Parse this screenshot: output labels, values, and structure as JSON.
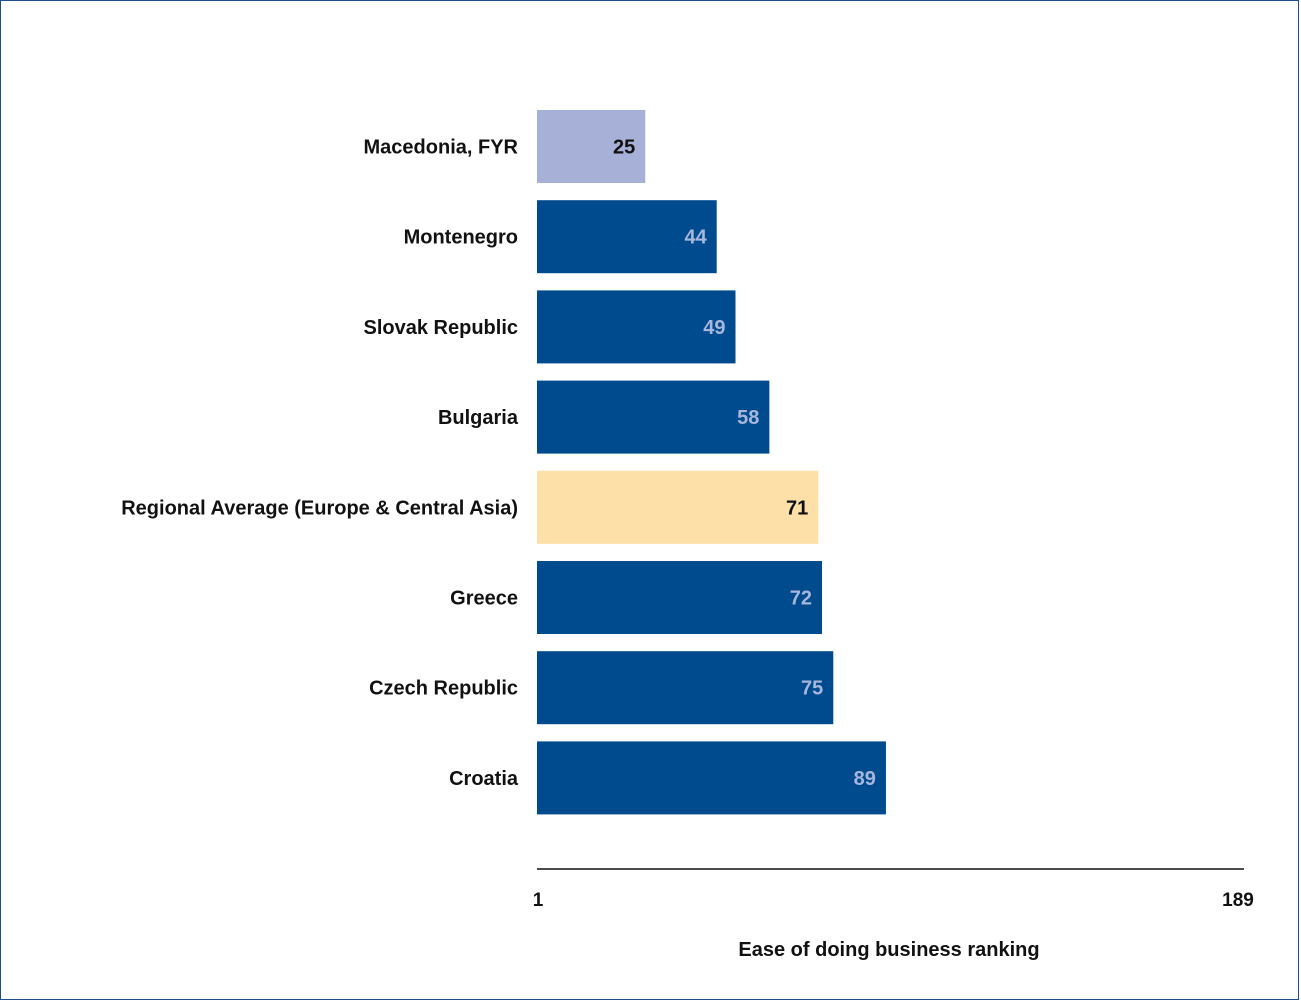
{
  "chart_data": {
    "type": "bar",
    "orientation": "horizontal",
    "categories": [
      "Macedonia, FYR",
      "Montenegro",
      "Slovak Republic",
      "Bulgaria",
      "Regional Average (Europe & Central Asia)",
      "Greece",
      "Czech Republic",
      "Croatia"
    ],
    "values": [
      25,
      44,
      49,
      58,
      71,
      72,
      75,
      89
    ],
    "bar_colors": [
      "#a7b0d6",
      "#004b8d",
      "#004b8d",
      "#004b8d",
      "#fde0a8",
      "#004b8d",
      "#004b8d",
      "#004b8d"
    ],
    "value_label_colors": [
      "#111111",
      "#a7b6dc",
      "#a7b6dc",
      "#a7b6dc",
      "#111111",
      "#a7b6dc",
      "#a7b6dc",
      "#a7b6dc"
    ],
    "xlim": [
      1,
      189
    ],
    "x_ticks": [
      "1",
      "189"
    ],
    "xlabel": "Ease of doing business ranking",
    "ylabel": "",
    "title": "",
    "grid": false,
    "legend": "none"
  }
}
